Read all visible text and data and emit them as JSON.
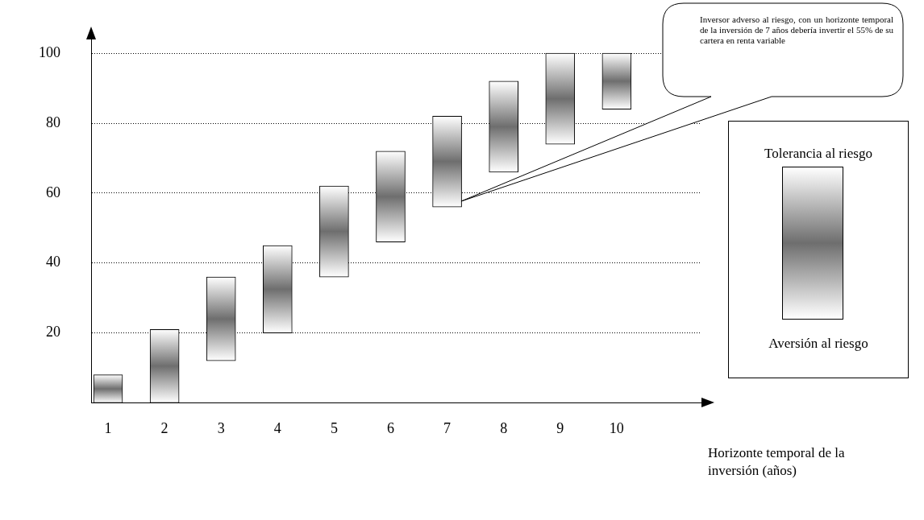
{
  "chart_data": {
    "type": "bar",
    "xlabel": "Horizonte temporal de la inversión (años)",
    "categories": [
      "1",
      "2",
      "3",
      "4",
      "5",
      "6",
      "7",
      "8",
      "9",
      "10"
    ],
    "base": [
      0,
      0,
      12,
      20,
      36,
      46,
      56,
      66,
      74,
      84
    ],
    "values": [
      8,
      21,
      24,
      25,
      26,
      26,
      26,
      26,
      26,
      16
    ],
    "color": "#6e6e6e",
    "ylim": [
      0,
      104
    ],
    "yticks": [
      20,
      40,
      60,
      80,
      100
    ],
    "grid": "y",
    "annotations": [
      "Inversor adverso al riesgo, con un horizonte temporal de la inversión de 7 años debería invertir el 55% de su cartera en renta variable",
      "Tolerancia al riesgo",
      "Aversión al riesgo"
    ]
  }
}
